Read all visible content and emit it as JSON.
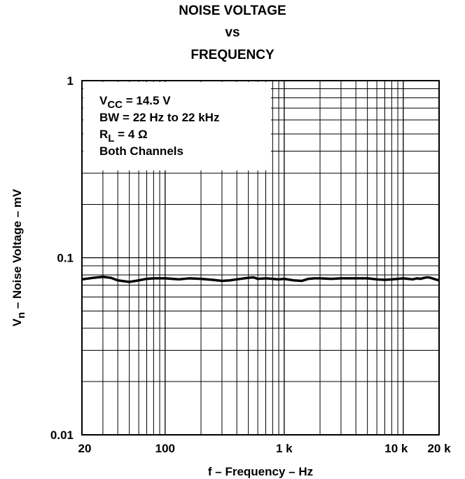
{
  "chart_data": {
    "type": "line",
    "title_lines": [
      "NOISE VOLTAGE",
      "vs",
      "FREQUENCY"
    ],
    "xlabel": "f – Frequency – Hz",
    "ylabel": {
      "prefix": "V",
      "subscript": "n",
      "rest": " – Noise Voltage – mV"
    },
    "xscale": "log",
    "yscale": "log",
    "xlim": [
      20,
      20000
    ],
    "ylim": [
      0.01,
      1
    ],
    "grid": true,
    "x_ticks": [
      {
        "value": 20,
        "label": "20"
      },
      {
        "value": 100,
        "label": "100"
      },
      {
        "value": 1000,
        "label": "1 k"
      },
      {
        "value": 10000,
        "label": "10 k"
      },
      {
        "value": 20000,
        "label": "20 k"
      }
    ],
    "y_ticks": [
      {
        "value": 1,
        "label": "1"
      },
      {
        "value": 0.1,
        "label": "0.1"
      },
      {
        "value": 0.01,
        "label": "0.01"
      }
    ],
    "legend_box": {
      "placement": "top-left",
      "lines": [
        {
          "main": "V",
          "sub": "CC",
          "rest": " = 14.5 V"
        },
        {
          "main": "BW = 22 Hz to 22 kHz",
          "sub": "",
          "rest": ""
        },
        {
          "main": "R",
          "sub": "L",
          "rest": " = 4 Ω"
        },
        {
          "main": "Both Channels",
          "sub": "",
          "rest": ""
        }
      ]
    },
    "series": [
      {
        "x": [
          20,
          25,
          30,
          35,
          40,
          50,
          60,
          70,
          80,
          100,
          130,
          160,
          200,
          250,
          300,
          350,
          400,
          500,
          550,
          600,
          700,
          800,
          900,
          1000,
          1200,
          1400,
          1600,
          1800,
          2000,
          2500,
          3000,
          4000,
          5000,
          6000,
          7000,
          8000,
          9000,
          10000,
          11000,
          12000,
          13000,
          14000,
          15000,
          16000,
          17000,
          18000,
          20000
        ],
        "y": [
          0.0755,
          0.077,
          0.078,
          0.077,
          0.0745,
          0.073,
          0.0745,
          0.076,
          0.0765,
          0.0765,
          0.0755,
          0.0765,
          0.076,
          0.075,
          0.074,
          0.0745,
          0.0755,
          0.077,
          0.0775,
          0.076,
          0.0765,
          0.076,
          0.0755,
          0.076,
          0.0745,
          0.074,
          0.076,
          0.0765,
          0.0765,
          0.076,
          0.0765,
          0.0765,
          0.0765,
          0.0755,
          0.075,
          0.0755,
          0.076,
          0.0765,
          0.076,
          0.0755,
          0.0765,
          0.076,
          0.077,
          0.0775,
          0.077,
          0.076,
          0.0745
        ]
      }
    ]
  }
}
